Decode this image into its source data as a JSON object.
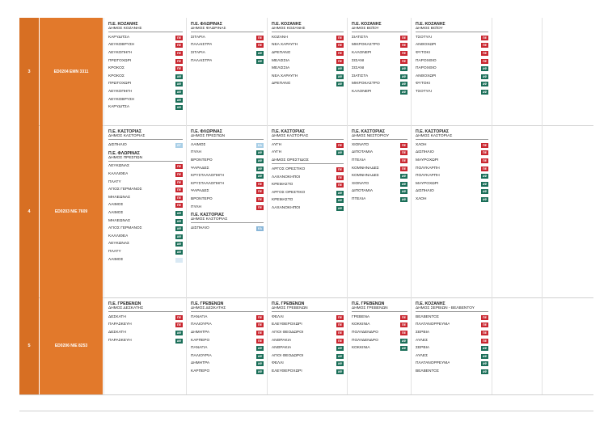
{
  "colors": {
    "id_bg": "#d76f23",
    "code_bg": "#e2792b",
    "pe": "#c9262f",
    "af": "#1a6e58",
    "et": "#a9cfe7",
    "ea": "#8ab7d9",
    "ghost": "#d9e9f4"
  },
  "rows": [
    {
      "id": "3",
      "code": "ED0204  EMN 3311",
      "cols": [
        {
          "groups": [
            {
              "h1": "Π.Ε. ΚΟΖΑΝΗΣ",
              "h2": "ΔΗΜΟΣ ΚΟΖΑΝΗΣ",
              "items": [
                {
                  "t": "ΚΑΡΥΔΙΤΣΑ",
                  "b": "ΠΕ",
                  "c": "pe"
                },
                {
                  "t": "ΛΕΥΚΟΒΡΥΣΗ",
                  "b": "ΠΕ",
                  "c": "pe"
                },
                {
                  "t": "ΛΕΥΚΟΠΗΓΗ",
                  "b": "ΠΕ",
                  "c": "pe"
                },
                {
                  "t": "ΠΡΩΤΟΧΩΡΙ",
                  "b": "ΠΕ",
                  "c": "pe"
                },
                {
                  "t": "ΚΡΟΚΟΣ",
                  "b": "ΠΕ",
                  "c": "pe"
                },
                {
                  "t": "ΚΡΟΚΟΣ",
                  "b": "ΑΦ",
                  "c": "af"
                },
                {
                  "t": "ΠΡΩΤΟΧΩΡΙ",
                  "b": "ΑΦ",
                  "c": "af"
                },
                {
                  "t": "ΛΕΥΚΟΠΗΓΗ",
                  "b": "ΑΦ",
                  "c": "af"
                },
                {
                  "t": "ΛΕΥΚΟΒΡΥΣΗ",
                  "b": "ΑΦ",
                  "c": "af"
                },
                {
                  "t": "ΚΑΡΥΔΙΤΣΑ",
                  "b": "ΑΦ",
                  "c": "af"
                }
              ]
            }
          ]
        },
        {
          "groups": [
            {
              "h1": "Π.Ε. ΦΛΩΡΙΝΑΣ",
              "h2": "ΔΗΜΟΣ ΦΛΩΡΙΝΑΣ",
              "items": [
                {
                  "t": "ΣΙΤΑΡΙΑ",
                  "b": "ΠΕ",
                  "c": "pe"
                },
                {
                  "t": "ΠΑΛΑΙΣΤΡΑ",
                  "b": "ΠΕ",
                  "c": "pe"
                },
                {
                  "t": "ΣΙΤΑΡΙΑ",
                  "b": "ΑΦ",
                  "c": "af"
                },
                {
                  "t": "ΠΑΛΑΙΣΤΡΑ",
                  "b": "ΑΦ",
                  "c": "af"
                }
              ]
            }
          ]
        },
        {
          "groups": [
            {
              "h1": "Π.Ε. ΚΟΖΑΝΗΣ",
              "h2": "ΔΗΜΟΣ ΚΟΖΑΝΗΣ",
              "items": [
                {
                  "t": "ΚΟΖΑΝΗ",
                  "b": "ΠΕ",
                  "c": "pe"
                },
                {
                  "t": "ΝΕΑ ΧΑΡΑΥΓΗ",
                  "b": "ΠΕ",
                  "c": "pe"
                },
                {
                  "t": "ΔΡΕΠΑΝΟ",
                  "b": "ΠΕ",
                  "c": "pe"
                },
                {
                  "t": "ΜΕΛΙΣΣΙΑ",
                  "b": "ΠΕ",
                  "c": "pe"
                },
                {
                  "t": "ΜΕΛΙΣΣΙΑ",
                  "b": "ΑΦ",
                  "c": "af"
                },
                {
                  "t": "ΝΕΑ ΧΑΡΑΥΓΗ",
                  "b": "ΑΦ",
                  "c": "af"
                },
                {
                  "t": "ΔΡΕΠΑΝΟ",
                  "b": "ΑΦ",
                  "c": "af"
                }
              ]
            }
          ]
        },
        {
          "groups": [
            {
              "h1": "Π.Ε. ΚΟΖΑΝΗΣ",
              "h2": "ΔΗΜΟΣ ΒΟΪΟΥ",
              "items": [
                {
                  "t": "ΣΙΑΤΙΣΤΑ",
                  "b": "ΠΕ",
                  "c": "pe"
                },
                {
                  "t": "ΜΙΚΡΟΚΑΣΤΡΟ",
                  "b": "ΠΕ",
                  "c": "pe"
                },
                {
                  "t": "ΚΑΛΟΝΕΡΙ",
                  "b": "ΠΕ",
                  "c": "pe"
                },
                {
                  "t": "ΣΙΣΑΝΙ",
                  "b": "ΠΕ",
                  "c": "pe"
                },
                {
                  "t": "ΣΙΣΑΝΙ",
                  "b": "ΑΦ",
                  "c": "af"
                },
                {
                  "t": "ΣΙΑΤΙΣΤΑ",
                  "b": "ΑΦ",
                  "c": "af"
                },
                {
                  "t": "ΜΙΚΡΟΚΑΣΤΡΟ",
                  "b": "ΑΦ",
                  "c": "af"
                },
                {
                  "t": "ΚΑΛΟΝΕΡΙ",
                  "b": "ΑΦ",
                  "c": "af"
                }
              ]
            }
          ]
        },
        {
          "groups": [
            {
              "h1": "Π.Ε. ΚΟΖΑΝΗΣ",
              "h2": "ΔΗΜΟΣ ΒΟΪΟΥ",
              "items": [
                {
                  "t": "ΤΣΟΤΥΛΙ",
                  "b": "ΠΕ",
                  "c": "pe"
                },
                {
                  "t": "ΑΝΘΟΧΩΡΙ",
                  "b": "ΠΕ",
                  "c": "pe"
                },
                {
                  "t": "ΦΥΤΟΚΙ",
                  "b": "ΠΕ",
                  "c": "pe"
                },
                {
                  "t": "ΠΑΡΟΧΘΙΟ",
                  "b": "ΠΕ",
                  "c": "pe"
                },
                {
                  "t": "ΠΑΡΟΧΘΙΟ",
                  "b": "ΑΦ",
                  "c": "af"
                },
                {
                  "t": "ΑΝΘΟΧΩΡΙ",
                  "b": "ΑΦ",
                  "c": "af"
                },
                {
                  "t": "ΦΥΤΟΚΙ",
                  "b": "ΑΦ",
                  "c": "af"
                },
                {
                  "t": "ΤΣΟΤΥΛΙ",
                  "b": "ΑΦ",
                  "c": "af"
                }
              ]
            }
          ]
        },
        {
          "groups": []
        },
        {
          "groups": []
        }
      ]
    },
    {
      "id": "4",
      "code": "ED0203  NIE 7609",
      "cols": [
        {
          "groups": [
            {
              "h1": "Π.Ε. ΚΑΣΤΟΡΙΑΣ",
              "h2": "ΔΗΜΟΣ ΚΑΣΤΟΡΙΑΣ",
              "items": [
                {
                  "t": "ΔΙΣΠΗΛΙΟ",
                  "b": "ΕΤ",
                  "c": "et"
                }
              ]
            },
            {
              "h1": "Π.Ε. ΦΛΩΡΙΝΑΣ",
              "h2": "ΔΗΜΟΣ ΠΡΕΣΠΩΝ",
              "items": [
                {
                  "t": "ΛΕΥΚΩΝΑΣ",
                  "b": "ΠΕ",
                  "c": "pe"
                },
                {
                  "t": "ΚΑΛΛΙΘΕΑ",
                  "b": "ΠΕ",
                  "c": "pe"
                },
                {
                  "t": "ΠΛΑΤΥ",
                  "b": "ΠΕ",
                  "c": "pe"
                },
                {
                  "t": "ΑΓΙΟΣ ΓΕΡΜΑΝΟΣ",
                  "b": "ΠΕ",
                  "c": "pe"
                },
                {
                  "t": "ΜΗΛΕΩΝΑΣ",
                  "b": "ΠΕ",
                  "c": "pe"
                },
                {
                  "t": "ΛΑΙΜΟΣ",
                  "b": "ΠΕ",
                  "c": "pe"
                },
                {
                  "t": "ΛΑΙΜΟΣ",
                  "b": "ΑΦ",
                  "c": "af"
                },
                {
                  "t": "ΜΗΛΕΩΝΑΣ",
                  "b": "ΑΦ",
                  "c": "af"
                },
                {
                  "t": "ΑΓΙΟΣ ΓΕΡΜΑΝΟΣ",
                  "b": "ΑΦ",
                  "c": "af"
                },
                {
                  "t": "ΚΑΛΛΙΘΕΑ",
                  "b": "ΑΦ",
                  "c": "af"
                },
                {
                  "t": "ΛΕΥΚΩΝΑΣ",
                  "b": "ΑΦ",
                  "c": "af"
                },
                {
                  "t": "ΠΛΑΤΥ",
                  "b": "ΑΦ",
                  "c": "af"
                },
                {
                  "t": "ΛΑΙΜΟΣ",
                  "b": "",
                  "c": "gh"
                }
              ]
            }
          ]
        },
        {
          "groups": [
            {
              "h1": "Π.Ε. ΦΛΩΡΙΝΑΣ",
              "h2": "ΔΗΜΟΣ ΠΡΕΣΠΩΝ",
              "items": [
                {
                  "t": "ΛΑΙΜΟΣ",
                  "b": "ΕΑ",
                  "c": "et"
                },
                {
                  "t": "ΠΥΛΗ",
                  "b": "ΑΦ",
                  "c": "af"
                },
                {
                  "t": "ΒΡΟΝΤΕΡΟ",
                  "b": "ΑΦ",
                  "c": "af"
                },
                {
                  "t": "ΨΑΡΑΔΕΣ",
                  "b": "ΑΦ",
                  "c": "af"
                },
                {
                  "t": "ΚΡΥΣΤΑΛΛΟΠΗΓΗ",
                  "b": "ΑΦ",
                  "c": "af"
                },
                {
                  "t": "ΚΡΥΣΤΑΛΛΟΠΗΓΗ",
                  "b": "ΠΕ",
                  "c": "pe"
                },
                {
                  "t": "ΨΑΡΑΔΕΣ",
                  "b": "ΠΕ",
                  "c": "pe"
                },
                {
                  "t": "ΒΡΟΝΤΕΡΟ",
                  "b": "ΠΕ",
                  "c": "pe"
                },
                {
                  "t": "ΠΥΛΗ",
                  "b": "ΠΕ",
                  "c": "pe"
                }
              ]
            },
            {
              "h1": "Π.Ε. ΚΑΣΤΟΡΙΑΣ",
              "h2": "ΔΗΜΟΣ ΚΑΣΤΟΡΙΑΣ",
              "items": [
                {
                  "t": "ΔΙΣΠΗΛΙΟ",
                  "b": "ΕΑ",
                  "c": "ea"
                }
              ]
            }
          ]
        },
        {
          "groups": [
            {
              "h1": "Π.Ε. ΚΑΣΤΟΡΙΑΣ",
              "h2": "ΔΗΜΟΣ ΚΑΣΤΟΡΙΑΣ",
              "items": [
                {
                  "t": "ΑΥΓΗ",
                  "b": "ΠΕ",
                  "c": "pe"
                },
                {
                  "t": "ΑΥΓΗ",
                  "b": "ΑΦ",
                  "c": "af"
                }
              ]
            },
            {
              "h1": "",
              "h2": "ΔΗΜΟΣ ΟΡΕΣΤΙΔΟΣ",
              "items": [
                {
                  "t": "ΑΡΓΟΣ ΟΡΕΣΤΙΚΟ",
                  "b": "ΠΕ",
                  "c": "pe"
                },
                {
                  "t": "ΛΑΧΑΝΟΚΗΠΟΙ",
                  "b": "ΠΕ",
                  "c": "pe"
                },
                {
                  "t": "ΚΡΕΜΑΣΤΟ",
                  "b": "ΠΕ",
                  "c": "pe"
                },
                {
                  "t": "ΑΡΓΟΣ ΟΡΕΣΤΙΚΟ",
                  "b": "ΑΦ",
                  "c": "af"
                },
                {
                  "t": "ΚΡΕΜΑΣΤΟ",
                  "b": "ΑΦ",
                  "c": "af"
                },
                {
                  "t": "ΛΑΧΑΝΟΚΗΠΟΙ",
                  "b": "ΑΦ",
                  "c": "af"
                }
              ]
            }
          ]
        },
        {
          "groups": [
            {
              "h1": "Π.Ε. ΚΑΣΤΟΡΙΑΣ",
              "h2": "ΔΗΜΟΣ ΝΕΣΤΟΡΙΟΥ",
              "items": [
                {
                  "t": "ΧΙΟΝΑΤΟ",
                  "b": "ΠΕ",
                  "c": "pe"
                },
                {
                  "t": "ΔΙΠΟΤΑΜΙΑ",
                  "b": "ΠΕ",
                  "c": "pe"
                },
                {
                  "t": "ΠΤΕΛΙΑ",
                  "b": "ΠΕ",
                  "c": "pe"
                },
                {
                  "t": "ΚΟΜΝΗΝΑΔΕΣ",
                  "b": "ΠΕ",
                  "c": "pe"
                },
                {
                  "t": "ΚΟΜΝΗΝΑΔΕΣ",
                  "b": "ΑΦ",
                  "c": "af"
                },
                {
                  "t": "ΧΙΟΝΑΤΟ",
                  "b": "ΑΦ",
                  "c": "af"
                },
                {
                  "t": "ΔΙΠΟΤΑΜΙΑ",
                  "b": "ΑΦ",
                  "c": "af"
                },
                {
                  "t": "ΠΤΕΛΙΑ",
                  "b": "ΑΦ",
                  "c": "af"
                }
              ]
            }
          ]
        },
        {
          "groups": [
            {
              "h1": "Π.Ε. ΚΑΣΤΟΡΙΑΣ",
              "h2": "ΔΗΜΟΣ ΚΑΣΤΟΡΙΑΣ",
              "items": [
                {
                  "t": "ΧΛΟΗ",
                  "b": "ΠΕ",
                  "c": "pe"
                },
                {
                  "t": "ΔΙΣΠΗΛΙΟ",
                  "b": "ΠΕ",
                  "c": "pe"
                },
                {
                  "t": "ΜΑΥΡΟΧΩΡΙ",
                  "b": "ΠΕ",
                  "c": "pe"
                },
                {
                  "t": "ΠΟΛΥΚΑΡΠΗ",
                  "b": "ΠΕ",
                  "c": "pe"
                },
                {
                  "t": "ΠΟΛΥΚΑΡΠΗ",
                  "b": "ΑΦ",
                  "c": "af"
                },
                {
                  "t": "ΜΑΥΡΟΧΩΡΙ",
                  "b": "ΑΦ",
                  "c": "af"
                },
                {
                  "t": "ΔΙΣΠΗΛΙΟ",
                  "b": "ΑΦ",
                  "c": "af"
                },
                {
                  "t": "ΧΛΟΗ",
                  "b": "ΑΦ",
                  "c": "af"
                }
              ]
            }
          ]
        },
        {
          "groups": []
        },
        {
          "groups": []
        }
      ]
    },
    {
      "id": "5",
      "code": "ED0206  NIE 8253",
      "cols": [
        {
          "groups": [
            {
              "h1": "Π.Ε. ΓΡΕΒΕΝΩΝ",
              "h2": "ΔΗΜΟΣ ΔΕΣΚΑΤΗΣ",
              "items": [
                {
                  "t": "ΔΕΣΚΑΤΗ",
                  "b": "ΠΕ",
                  "c": "pe"
                },
                {
                  "t": "ΠΑΡΑΣΚΕΥΗ",
                  "b": "ΠΕ",
                  "c": "pe"
                },
                {
                  "t": "ΔΕΣΚΑΤΗ",
                  "b": "ΑΦ",
                  "c": "af"
                },
                {
                  "t": "ΠΑΡΑΣΚΕΥΗ",
                  "b": "ΑΦ",
                  "c": "af"
                }
              ]
            }
          ]
        },
        {
          "groups": [
            {
              "h1": "Π.Ε. ΓΡΕΒΕΝΩΝ",
              "h2": "ΔΗΜΟΣ ΔΕΣΚΑΤΗΣ",
              "items": [
                {
                  "t": "ΠΑΝΑΓΙΑ",
                  "b": "ΠΕ",
                  "c": "pe"
                },
                {
                  "t": "ΠΑΛΙΟΥΡΙΑ",
                  "b": "ΠΕ",
                  "c": "pe"
                },
                {
                  "t": "ΔΗΜΗΤΡΑ",
                  "b": "ΠΕ",
                  "c": "pe"
                },
                {
                  "t": "ΚΑΡΠΕΡΟ",
                  "b": "ΠΕ",
                  "c": "pe"
                },
                {
                  "t": "ΠΑΝΑΓΙΑ",
                  "b": "ΑΦ",
                  "c": "af"
                },
                {
                  "t": "ΠΑΛΙΟΥΡΙΑ",
                  "b": "ΑΦ",
                  "c": "af"
                },
                {
                  "t": "ΔΗΜΗΤΡΑ",
                  "b": "ΑΦ",
                  "c": "af"
                },
                {
                  "t": "ΚΑΡΠΕΡΟ",
                  "b": "ΑΦ",
                  "c": "af"
                }
              ]
            }
          ]
        },
        {
          "groups": [
            {
              "h1": "Π.Ε. ΓΡΕΒΕΝΩΝ",
              "h2": "ΔΗΜΟΣ ΓΡΕΒΕΝΩΝ",
              "items": [
                {
                  "t": "ΦΕΛΛΙ",
                  "b": "ΠΕ",
                  "c": "pe"
                },
                {
                  "t": "ΕΛΕΥΘΕΡΟΧΩΡΙ",
                  "b": "ΠΕ",
                  "c": "pe"
                },
                {
                  "t": "ΑΓΙΟΙ ΘΕΟΔΩΡΟΙ",
                  "b": "ΠΕ",
                  "c": "pe"
                },
                {
                  "t": "ΑΝΘΡΑΚΙΑ",
                  "b": "ΠΕ",
                  "c": "pe"
                },
                {
                  "t": "ΑΝΘΡΑΚΙΑ",
                  "b": "ΑΦ",
                  "c": "af"
                },
                {
                  "t": "ΑΓΙΟΙ ΘΕΟΔΩΡΟΙ",
                  "b": "ΑΦ",
                  "c": "af"
                },
                {
                  "t": "ΦΕΛΛΙ",
                  "b": "ΑΦ",
                  "c": "af"
                },
                {
                  "t": "ΕΛΕΥΘΕΡΟΧΩΡΙ",
                  "b": "ΑΦ",
                  "c": "af"
                }
              ]
            }
          ]
        },
        {
          "groups": [
            {
              "h1": "Π.Ε. ΓΡΕΒΕΝΩΝ",
              "h2": "ΔΗΜΟΣ ΓΡΕΒΕΝΩΝ",
              "items": [
                {
                  "t": "ΓΡΕΒΕΝΑ",
                  "b": "ΠΕ",
                  "c": "pe"
                },
                {
                  "t": "ΚΟΚΚΙΝΙΑ",
                  "b": "ΠΕ",
                  "c": "pe"
                },
                {
                  "t": "ΠΟΛΥΔΕΝΔΡΟ",
                  "b": "ΠΕ",
                  "c": "pe"
                },
                {
                  "t": "ΠΟΛΥΔΕΝΔΡΟ",
                  "b": "ΑΦ",
                  "c": "af"
                },
                {
                  "t": "ΚΟΚΚΙΝΙΑ",
                  "b": "ΑΦ",
                  "c": "af"
                }
              ]
            }
          ]
        },
        {
          "groups": [
            {
              "h1": "Π.Ε. ΚΟΖΑΝΗΣ",
              "h2": "ΔΗΜΟΣ ΣΕΡΒΙΩΝ - ΒΕΛΒΕΝΤΟΥ",
              "items": [
                {
                  "t": "ΒΕΛΒΕΝΤΟΣ",
                  "b": "ΠΕ",
                  "c": "pe"
                },
                {
                  "t": "ΠΛΑΤΑΝΟΡΡΕΥΜΑ",
                  "b": "ΠΕ",
                  "c": "pe"
                },
                {
                  "t": "ΣΕΡΒΙΑ",
                  "b": "ΠΕ",
                  "c": "pe"
                },
                {
                  "t": "ΑΥΛΕΣ",
                  "b": "ΠΕ",
                  "c": "pe"
                },
                {
                  "t": "ΣΕΡΒΙΑ",
                  "b": "ΑΦ",
                  "c": "af"
                },
                {
                  "t": "ΑΥΛΕΣ",
                  "b": "ΑΦ",
                  "c": "af"
                },
                {
                  "t": "ΠΛΑΤΑΝΟΡΡΕΥΜΑ",
                  "b": "ΑΦ",
                  "c": "af"
                },
                {
                  "t": "ΒΕΛΒΕΝΤΟΣ",
                  "b": "ΑΦ",
                  "c": "af"
                }
              ]
            }
          ]
        },
        {
          "groups": []
        },
        {
          "groups": []
        }
      ]
    }
  ]
}
